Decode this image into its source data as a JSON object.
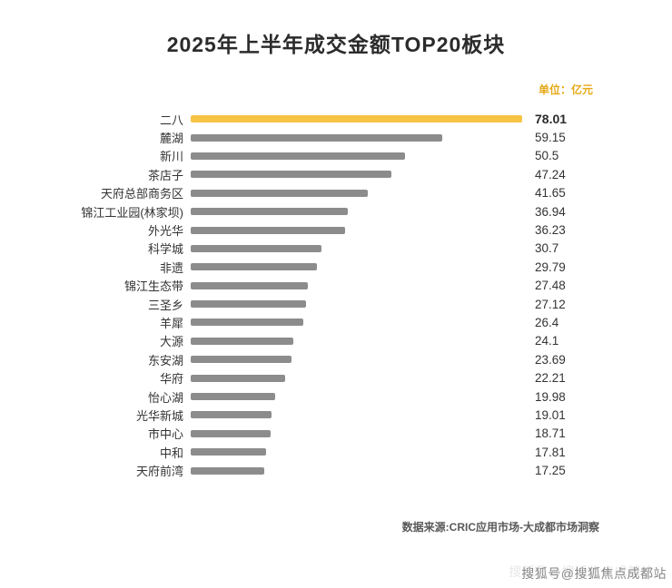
{
  "title": "2025年上半年成交金额TOP20板块",
  "unit_label": "单位：亿元",
  "source": "数据来源:CRIC应用市场-大成都市场洞察",
  "watermark": "搜狐号@搜狐焦点成都站",
  "colors": {
    "highlight_bar": "#F6C344",
    "default_bar": "#8C8C8C",
    "unit_text": "#E6A817"
  },
  "chart_data": {
    "type": "bar",
    "orientation": "horizontal",
    "title": "2025年上半年成交金额TOP20板块",
    "unit": "亿元",
    "xlim": [
      0,
      78.01
    ],
    "grid": false,
    "legend": false,
    "highlight_index": 0,
    "categories": [
      "二八",
      "麓湖",
      "新川",
      "茶店子",
      "天府总部商务区",
      "锦江工业园(林家坝)",
      "外光华",
      "科学城",
      "非遗",
      "锦江生态带",
      "三圣乡",
      "羊犀",
      "大源",
      "东安湖",
      "华府",
      "怡心湖",
      "光华新城",
      "市中心",
      "中和",
      "天府前湾"
    ],
    "values": [
      78.01,
      59.15,
      50.5,
      47.24,
      41.65,
      36.94,
      36.23,
      30.7,
      29.79,
      27.48,
      27.12,
      26.4,
      24.1,
      23.69,
      22.21,
      19.98,
      19.01,
      18.71,
      17.81,
      17.25
    ]
  }
}
